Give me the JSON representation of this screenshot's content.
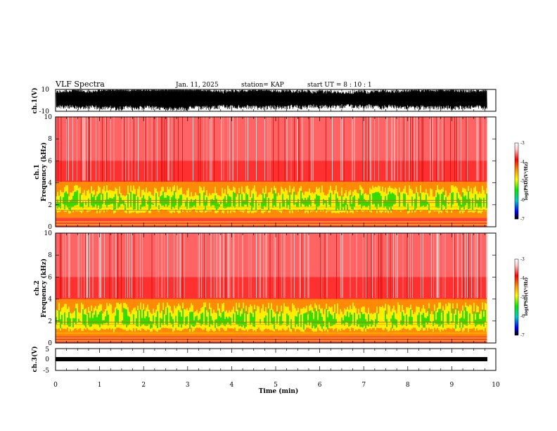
{
  "header": {
    "title": "VLF Spectra",
    "date": "Jan. 11, 2025",
    "station": "station= KAP",
    "start": "start  UT =   8  : 10 : 1"
  },
  "chart_data": [
    {
      "type": "line",
      "name": "ch1-waveform",
      "ylabel": "ch.1(V)",
      "ylim": [
        -10,
        10
      ],
      "yticks": [
        "10",
        "-10"
      ],
      "xlim": [
        0,
        10
      ],
      "data_end_min": 9.8
    },
    {
      "type": "heatmap",
      "name": "ch1-spectrogram",
      "ylabel": "ch.1\nFrequency (kHz)",
      "ylim": [
        0,
        10
      ],
      "yticks": [
        "0",
        "2",
        "4",
        "6",
        "8",
        "10"
      ],
      "xlim": [
        0,
        10
      ],
      "data_end_min": 9.8,
      "green_band_khz": [
        1.2,
        3.6
      ],
      "colorbar": {
        "label": "log(PSD)(V²/Hz)",
        "range": [
          -7,
          -3
        ],
        "ticks": [
          "-3",
          "-4",
          "-5",
          "-6",
          "-7"
        ]
      }
    },
    {
      "type": "heatmap",
      "name": "ch2-spectrogram",
      "ylabel": "ch.2\nFrequency (kHz)",
      "ylim": [
        0,
        10
      ],
      "yticks": [
        "0",
        "2",
        "4",
        "6",
        "8",
        "10"
      ],
      "xlim": [
        0,
        10
      ],
      "data_end_min": 9.8,
      "green_band_khz": [
        1.0,
        3.5
      ],
      "colorbar": {
        "label": "log(PSD)(V²/Hz)",
        "range": [
          -7,
          -3
        ],
        "ticks": [
          "-3",
          "-4",
          "-5",
          "-6",
          "-7"
        ]
      }
    },
    {
      "type": "line",
      "name": "ch3-waveform",
      "ylabel": "ch.3(V)",
      "ylim": [
        -5,
        5
      ],
      "yticks": [
        "5",
        "0",
        "-5"
      ],
      "xlim": [
        0,
        10
      ],
      "data_end_min": 9.8,
      "xlabel": "Time (min)",
      "xticks": [
        "0",
        "1",
        "2",
        "3",
        "4",
        "5",
        "6",
        "7",
        "8",
        "9",
        "10"
      ]
    }
  ]
}
